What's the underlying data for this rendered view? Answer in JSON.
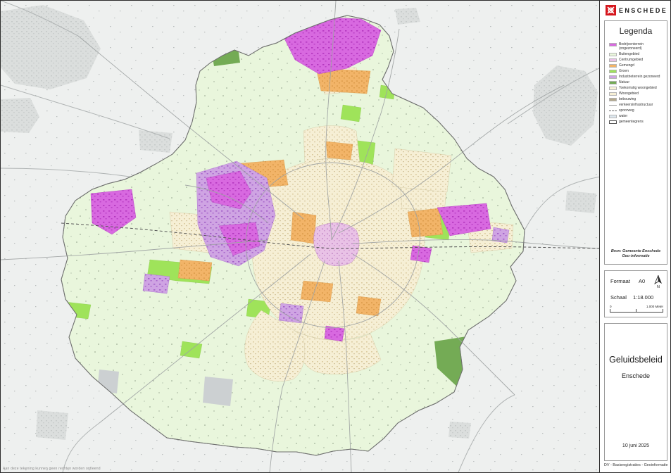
{
  "branding": {
    "logo_text": "ENSCHEDE"
  },
  "legend": {
    "title": "Legenda",
    "items": [
      {
        "label": "Bedrijventerrein (ongezoneerd)",
        "type": "swatch",
        "color": "#d869e0"
      },
      {
        "label": "Buitengebied",
        "type": "swatch",
        "color": "#e9f6dc"
      },
      {
        "label": "Centrumgebied",
        "type": "swatch",
        "color": "#e9c2e6"
      },
      {
        "label": "Gemengd",
        "type": "swatch",
        "color": "#f2b468"
      },
      {
        "label": "Groen",
        "type": "swatch",
        "color": "#9fe35a"
      },
      {
        "label": "Industrieterrein gezoneerd",
        "type": "swatch",
        "color": "#cfa4e3"
      },
      {
        "label": "Natuur",
        "type": "swatch",
        "color": "#74ab55"
      },
      {
        "label": "Toekomstig woongebied",
        "type": "swatch",
        "color": "#faf3da"
      },
      {
        "label": "Woongebied",
        "type": "swatch",
        "color": "#f6efd5"
      },
      {
        "label": "bebouwing",
        "type": "swatch",
        "color": "#b4a98d"
      },
      {
        "label": "verkeersinfrastructuur",
        "type": "line",
        "color": "#9b9b9b"
      },
      {
        "label": "spoorweg",
        "type": "dashed-line",
        "color": "#666666"
      },
      {
        "label": "water",
        "type": "swatch",
        "color": "#dde7ee"
      },
      {
        "label": "gemeentegrens",
        "type": "outline",
        "color": "#ffffff"
      }
    ],
    "source_line1": "Bron: Gemeente Enschede",
    "source_line2": "Geo-informatie"
  },
  "map_info": {
    "format_label": "Formaat",
    "format_value": "A0",
    "north_label": "N",
    "scale_label": "Schaal",
    "scale_value": "1:18.000",
    "scalebar_start": "0",
    "scalebar_end": "1.000 Meter"
  },
  "title_block": {
    "title": "Geluidsbeleid",
    "subtitle": "Enschede",
    "date": "10 juni 2025"
  },
  "footer": {
    "department": "DV - Basisregistraties - Geoinformatie"
  },
  "map": {
    "disclaimer": "Aan deze tekening kunnen geen rechten worden ontleend"
  }
}
